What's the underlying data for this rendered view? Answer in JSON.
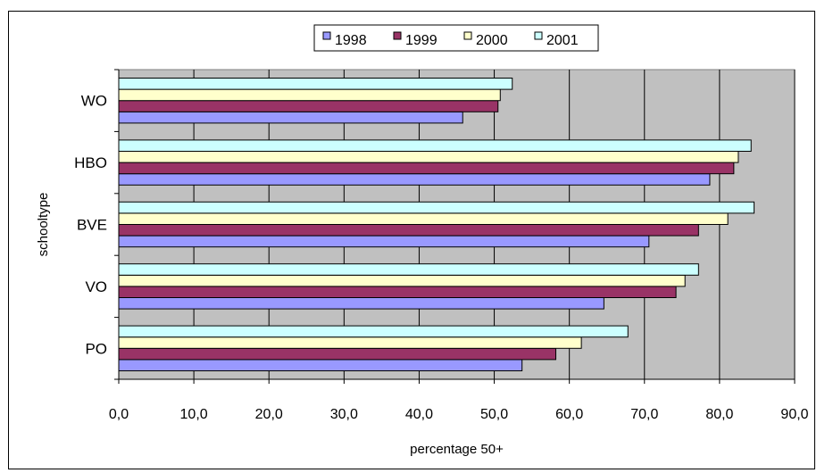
{
  "chart_data": {
    "type": "bar",
    "orientation": "horizontal",
    "categories": [
      "PO",
      "VO",
      "BVE",
      "HBO",
      "WO"
    ],
    "series": [
      {
        "name": "1998",
        "color": "#9999ff",
        "values": [
          53.7,
          64.6,
          70.6,
          78.7,
          45.8
        ]
      },
      {
        "name": "1999",
        "color": "#993366",
        "values": [
          58.2,
          74.2,
          77.2,
          81.9,
          50.5
        ]
      },
      {
        "name": "2000",
        "color": "#ffffcc",
        "values": [
          61.6,
          75.4,
          81.1,
          82.5,
          50.8
        ]
      },
      {
        "name": "2001",
        "color": "#ccffff",
        "values": [
          67.8,
          77.2,
          84.6,
          84.2,
          52.4
        ]
      }
    ],
    "xlabel": "percentage 50+",
    "ylabel": "schooltype",
    "xlim": [
      0,
      90
    ],
    "xticks": [
      "0,0",
      "10,0",
      "20,0",
      "30,0",
      "40,0",
      "50,0",
      "60,0",
      "70,0",
      "80,0",
      "90,0"
    ],
    "legend_position": "top",
    "plot_background": "#c0c0c0",
    "grid": true
  }
}
